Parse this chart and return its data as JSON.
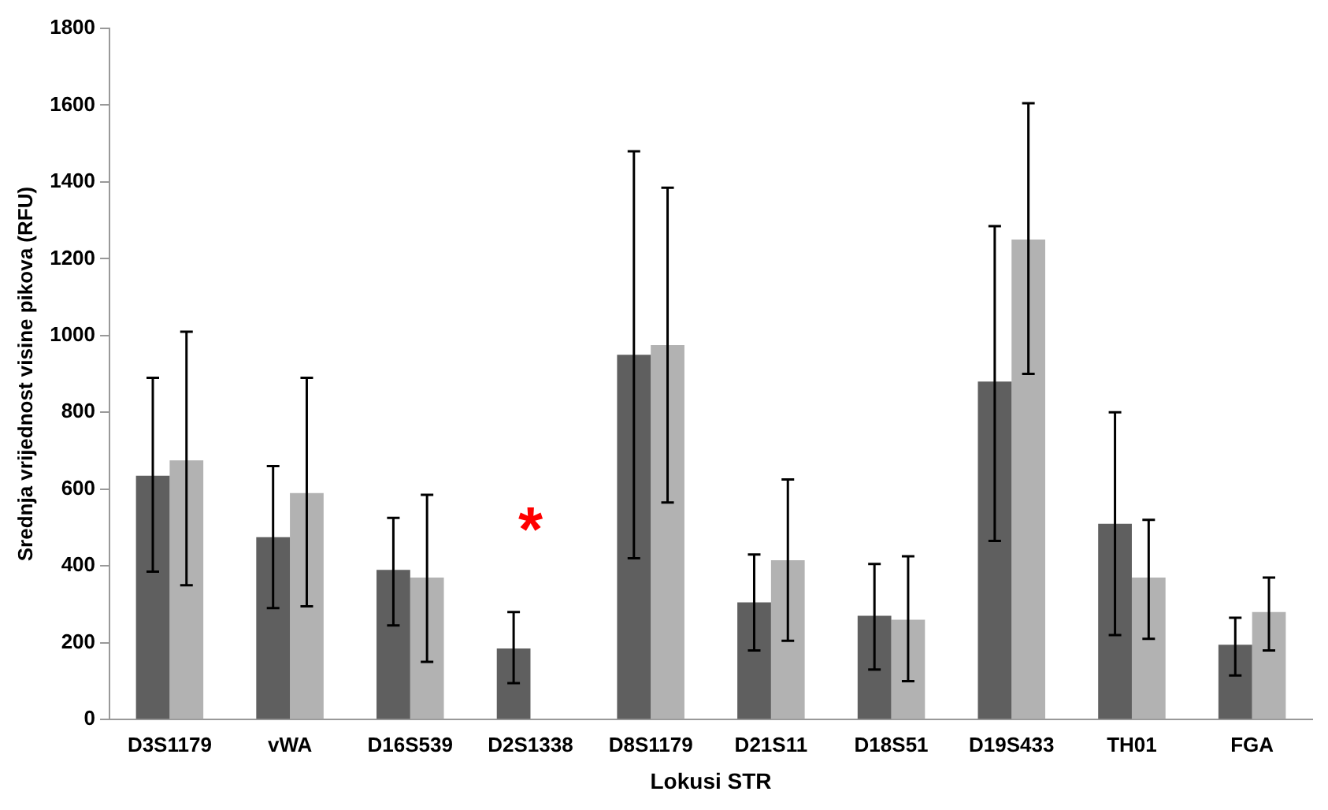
{
  "chart_data": {
    "type": "bar",
    "xlabel": "Lokusi STR",
    "ylabel": "Srednja vrijednost visine pikova (RFU)",
    "categories": [
      "D3S1179",
      "vWA",
      "D16S539",
      "D2S1338",
      "D8S1179",
      "D21S11",
      "D18S51",
      "D19S433",
      "TH01",
      "FGA"
    ],
    "series": [
      {
        "color": "#5f5f5f",
        "values": [
          635,
          475,
          390,
          185,
          950,
          305,
          270,
          880,
          510,
          195
        ],
        "errors": [
          [
            385,
            890
          ],
          [
            290,
            660
          ],
          [
            245,
            525
          ],
          [
            95,
            280
          ],
          [
            420,
            1480
          ],
          [
            180,
            430
          ],
          [
            130,
            405
          ],
          [
            465,
            1285
          ],
          [
            220,
            800
          ],
          [
            115,
            265
          ]
        ]
      },
      {
        "color": "#b2b2b2",
        "values": [
          675,
          590,
          370,
          null,
          975,
          415,
          260,
          1250,
          370,
          280
        ],
        "errors": [
          [
            350,
            1010
          ],
          [
            295,
            890
          ],
          [
            150,
            585
          ],
          null,
          [
            565,
            1385
          ],
          [
            205,
            625
          ],
          [
            100,
            425
          ],
          [
            900,
            1605
          ],
          [
            210,
            520
          ],
          [
            180,
            370
          ]
        ]
      }
    ],
    "ylim": [
      0,
      1800
    ],
    "yticks": [
      0,
      200,
      400,
      600,
      800,
      1000,
      1200,
      1400,
      1600,
      1800
    ],
    "grid": false,
    "legend": false,
    "annotations": [
      "*"
    ]
  }
}
